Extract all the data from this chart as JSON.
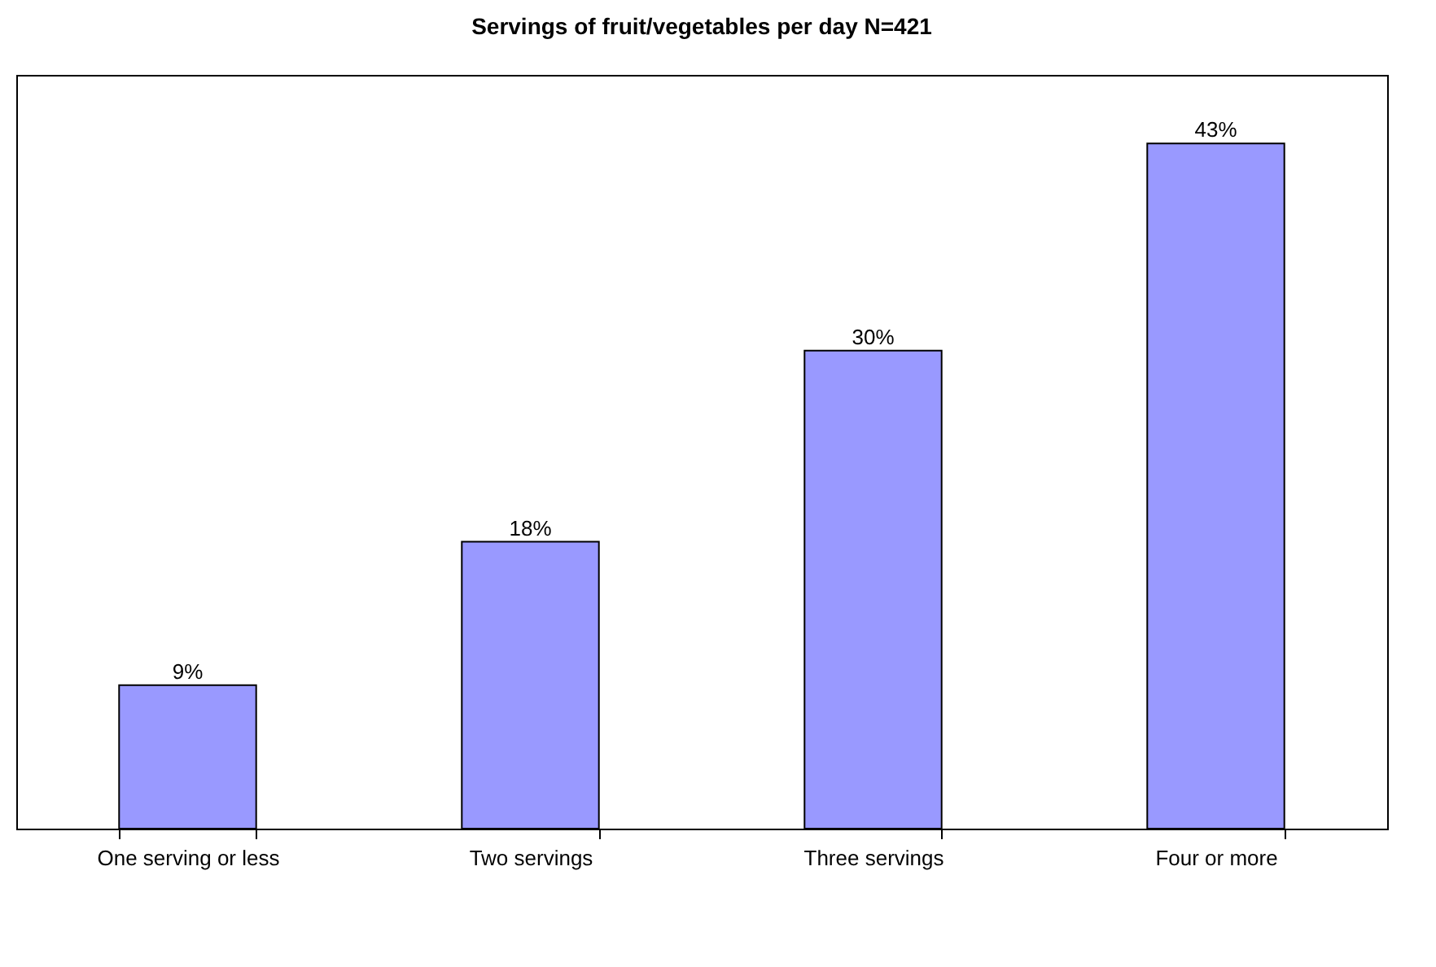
{
  "chart_data": {
    "type": "bar",
    "title": "Servings of fruit/vegetables per day N=421",
    "categories": [
      "One serving or less",
      "Two servings",
      "Three servings",
      "Four or more"
    ],
    "values": [
      9,
      18,
      30,
      43
    ],
    "value_labels": [
      "9%",
      "18%",
      "30%",
      "43%"
    ],
    "color": "#9999ff"
  }
}
